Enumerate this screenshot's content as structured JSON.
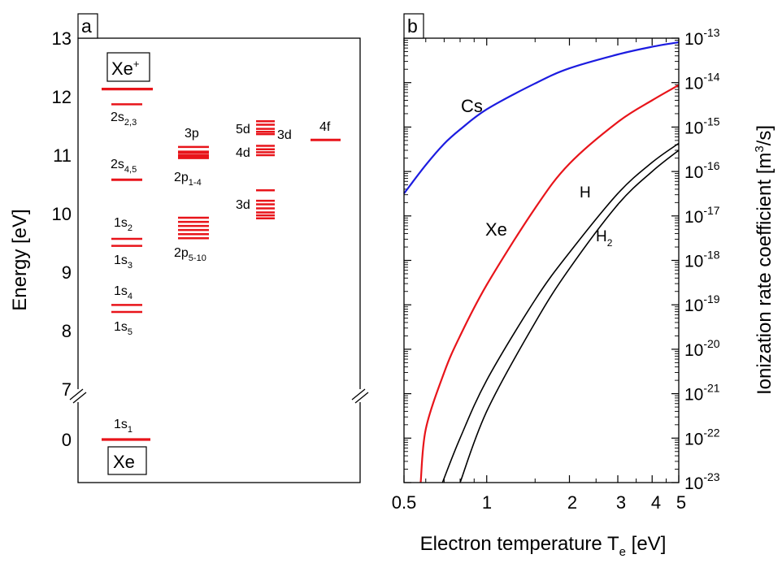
{
  "colors": {
    "level": "#e8141a",
    "cs": "#1c1ce0",
    "xe": "#e8141a",
    "h": "#000000",
    "h2": "#000000"
  },
  "panel_a": {
    "tag": "a",
    "ylabel": "Energy [eV]",
    "ticks": [
      "13",
      "12",
      "11",
      "10",
      "9",
      "8",
      "7",
      "0"
    ],
    "ion_box": "Xe",
    "ion_sup": "+",
    "atom_box": "Xe",
    "labels": {
      "s23": {
        "base": "2s",
        "sub": "2,3"
      },
      "s45": {
        "base": "2s",
        "sub": "4,5"
      },
      "s2": {
        "base": "1s",
        "sub": "2"
      },
      "s3": {
        "base": "1s",
        "sub": "3"
      },
      "s4": {
        "base": "1s",
        "sub": "4"
      },
      "s5": {
        "base": "1s",
        "sub": "5"
      },
      "s1": {
        "base": "1s",
        "sub": "1"
      },
      "p3": {
        "base": "3p",
        "sub": ""
      },
      "p14": {
        "base": "2p",
        "sub": "1-4"
      },
      "p510": {
        "base": "2p",
        "sub": "5-10"
      },
      "d5": {
        "base": "5d",
        "sub": ""
      },
      "d4": {
        "base": "4d",
        "sub": ""
      },
      "d3r": {
        "base": "3d",
        "sub": ""
      },
      "d3": {
        "base": "3d",
        "sub": ""
      },
      "f4": {
        "base": "4f",
        "sub": ""
      }
    }
  },
  "panel_b": {
    "tag": "b",
    "xlabel_base": "Electron temperature T",
    "xlabel_sub": "e",
    "xlabel_unit": " [eV]",
    "ylabel_base": "Ionization rate coefficient [m",
    "ylabel_sup": "3",
    "ylabel_end": "/s]",
    "xticks": [
      "0.5",
      "1",
      "2",
      "3",
      "4",
      "5"
    ],
    "yticks": [
      {
        "base": "10",
        "sup": "-13"
      },
      {
        "base": "10",
        "sup": "-14"
      },
      {
        "base": "10",
        "sup": "-15"
      },
      {
        "base": "10",
        "sup": "-16"
      },
      {
        "base": "10",
        "sup": "-17"
      },
      {
        "base": "10",
        "sup": "-18"
      },
      {
        "base": "10",
        "sup": "-19"
      },
      {
        "base": "10",
        "sup": "-20"
      },
      {
        "base": "10",
        "sup": "-21"
      },
      {
        "base": "10",
        "sup": "-22"
      },
      {
        "base": "10",
        "sup": "-23"
      }
    ],
    "curve_labels": {
      "cs": {
        "base": "Cs",
        "sub": ""
      },
      "xe": {
        "base": "Xe",
        "sub": ""
      },
      "h": {
        "base": "H",
        "sub": ""
      },
      "h2": {
        "base": "H",
        "sub": "2"
      }
    }
  },
  "chart_data": [
    {
      "type": "line",
      "title": "",
      "ylabel": "Energy [eV]",
      "ylim_upper": [
        7,
        13
      ],
      "ylim_lower_break_at": 0,
      "energy_levels_eV": {
        "Xe+": [
          12.13
        ],
        "2s2,3": [
          11.87
        ],
        "2s4,5": [
          10.58
        ],
        "1s2": [
          9.57
        ],
        "1s3": [
          9.45
        ],
        "1s4": [
          8.44
        ],
        "1s5": [
          8.32
        ],
        "1s1 (Xe ground)": [
          0.0
        ],
        "3p": [
          11.14,
          11.06,
          11.0,
          10.95
        ],
        "2p1-4": [
          11.04,
          10.97
        ],
        "2p5-10": [
          9.93,
          9.86,
          9.79,
          9.72,
          9.65,
          9.58
        ],
        "5d": [
          11.58,
          11.52,
          11.45,
          11.4,
          11.36
        ],
        "4d": [
          11.16,
          11.1,
          11.05,
          11.0
        ],
        "3d": [
          10.4,
          10.22,
          10.16,
          10.09,
          10.02,
          9.97,
          9.92
        ],
        "4f": [
          11.26
        ]
      }
    },
    {
      "type": "line",
      "title": "",
      "xlabel": "Electron temperature Te [eV]",
      "ylabel": "Ionization rate coefficient [m3/s]",
      "xscale": "log",
      "yscale": "log",
      "xlim": [
        0.5,
        5
      ],
      "ylim": [
        1e-23,
        1e-13
      ],
      "series": [
        {
          "name": "Cs",
          "x": [
            0.5,
            0.6,
            0.7,
            0.8,
            1.0,
            1.5,
            2.0,
            3.0,
            4.0,
            5.0
          ],
          "y": [
            3.2e-17,
            1.4e-16,
            4.2e-16,
            8.8e-16,
            2.5e-15,
            9.6e-15,
            2.1e-14,
            4.3e-14,
            6.4e-14,
            8.1e-14
          ]
        },
        {
          "name": "Xe",
          "x": [
            0.575,
            0.6,
            0.7,
            0.8,
            1.0,
            1.5,
            2.0,
            3.0,
            4.0,
            5.0
          ],
          "y": [
            1e-23,
            1.6e-22,
            3e-21,
            2e-20,
            2.8e-19,
            1.5e-17,
            1.5e-16,
            1.3e-15,
            4e-15,
            8.8e-15
          ]
        },
        {
          "name": "H",
          "x": [
            0.69,
            0.8,
            1.0,
            1.5,
            2.0,
            3.0,
            4.0,
            5.0
          ],
          "y": [
            1e-23,
            1e-22,
            2e-21,
            1.3e-19,
            1.5e-18,
            3.2e-17,
            1.6e-16,
            4.3e-16
          ]
        },
        {
          "name": "H2",
          "x": [
            0.8,
            1.0,
            1.5,
            2.0,
            3.0,
            4.0,
            5.0
          ],
          "y": [
            1e-23,
            4e-22,
            4e-20,
            6.5e-19,
            1.8e-17,
            1e-16,
            3e-16
          ]
        }
      ]
    }
  ]
}
